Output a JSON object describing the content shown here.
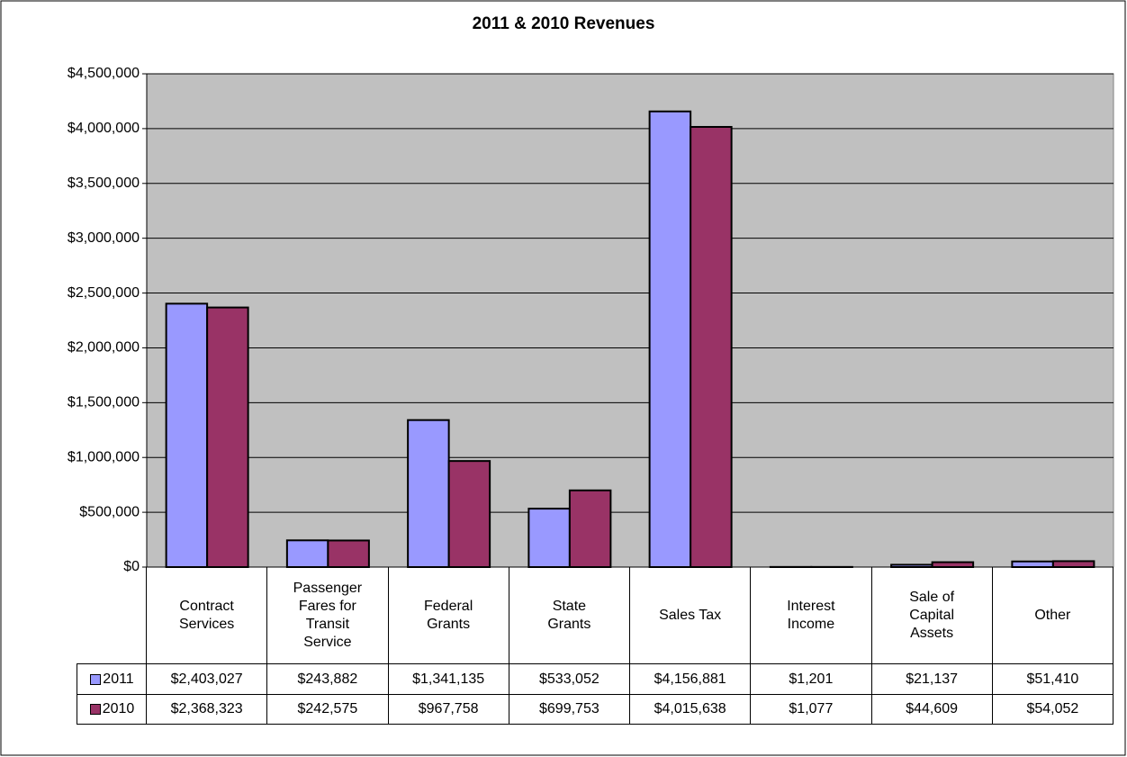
{
  "chart_data": {
    "type": "bar",
    "title": "2011 & 2010 Revenues",
    "categories": [
      "Contract Services",
      "Passenger Fares for Transit Service",
      "Federal Grants",
      "State Grants",
      "Sales Tax",
      "Interest Income",
      "Sale of Capital Assets",
      "Other"
    ],
    "series": [
      {
        "name": "2011",
        "color": "#9999ff",
        "values": [
          2403027,
          243882,
          1341135,
          533052,
          4156881,
          1201,
          21137,
          51410
        ],
        "value_labels": [
          "$2,403,027",
          "$243,882",
          "$1,341,135",
          "$533,052",
          "$4,156,881",
          "$1,201",
          "$21,137",
          "$51,410"
        ]
      },
      {
        "name": "2010",
        "color": "#993366",
        "values": [
          2368323,
          242575,
          967758,
          699753,
          4015638,
          1077,
          44609,
          54052
        ],
        "value_labels": [
          "$2,368,323",
          "$242,575",
          "$967,758",
          "$699,753",
          "$4,015,638",
          "$1,077",
          "$44,609",
          "$54,052"
        ]
      }
    ],
    "ylim": [
      0,
      4500000
    ],
    "yticks": [
      {
        "value": 0,
        "label": "$0"
      },
      {
        "value": 500000,
        "label": "$500,000"
      },
      {
        "value": 1000000,
        "label": "$1,000,000"
      },
      {
        "value": 1500000,
        "label": "$1,500,000"
      },
      {
        "value": 2000000,
        "label": "$2,000,000"
      },
      {
        "value": 2500000,
        "label": "$2,500,000"
      },
      {
        "value": 3000000,
        "label": "$3,000,000"
      },
      {
        "value": 3500000,
        "label": "$3,500,000"
      },
      {
        "value": 4000000,
        "label": "$4,000,000"
      },
      {
        "value": 4500000,
        "label": "$4,500,000"
      }
    ],
    "grid": true
  }
}
